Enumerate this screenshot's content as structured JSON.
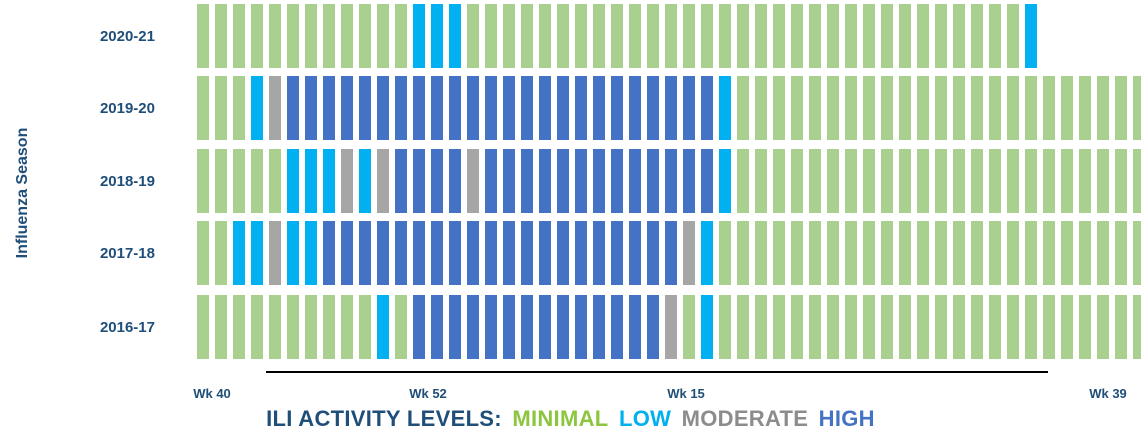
{
  "chart_data": {
    "type": "heatmap",
    "ylabel": "Influenza Season",
    "seasons": [
      "2020-21",
      "2019-20",
      "2018-19",
      "2017-18",
      "2016-17"
    ],
    "x_tick_labels": [
      "Wk 40",
      "Wk 52",
      "Wk 15",
      "Wk 39"
    ],
    "levels": {
      "minimal": {
        "label": "MINIMAL",
        "color": "#a9d08e"
      },
      "low": {
        "label": "LOW",
        "color": "#00b0f0"
      },
      "moderate": {
        "label": "MODERATE",
        "color": "#a6a6a6"
      },
      "high": {
        "label": "HIGH",
        "color": "#4472c4"
      }
    },
    "weekly_levels": {
      "2020-21": "MMMMMMMMMMMMLLLMMMMMMMMMMMMMMMMMMMMMMMMMMMMMMML",
      "2019-20": "MMMLDHHHHHHHHHHHHHHHHHHHHHHHHLMMMMMMMMMMMMMMMMMMMMMMMMMMMMMMMMMMMMMMMMMMMMMMMMMMMMMMMMMMMMMMMMMMMMMMMM",
      "2018-19": "MMMMMLLLDLDHHHHDHHHHHHHHHHHHHLMMMMMMMMMMMMMMMMMMMMMMMM",
      "2017-18": "MMLLDLLHHHHHHHHHHHHHHHHHHHHDLMMMMMMMMMMMMMMMMMMMMMMMMM",
      "2016-17": "MMMMMMMMMMLMHHHHHHHHHHHHHHDMLMMMMMMMMMMMMMMMMMMMMMMMMM"
    }
  },
  "legend": {
    "prefix": "ILI ACTIVITY LEVELS:",
    "minimal": "MINIMAL",
    "low": "LOW",
    "moderate": "MODERATE",
    "high": "HIGH",
    "prefix_color": "#1f4e79"
  }
}
